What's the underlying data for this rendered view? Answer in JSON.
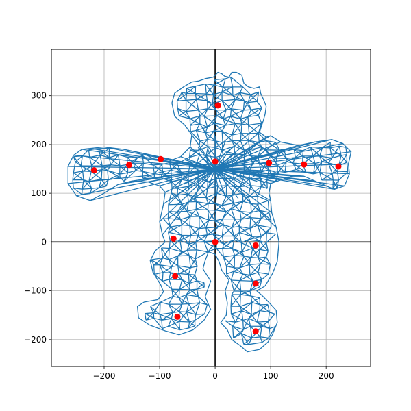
{
  "chart_data": {
    "type": "scatter",
    "title": "",
    "xlabel": "",
    "ylabel": "",
    "xlim": [
      -295,
      280
    ],
    "ylim": [
      -255,
      395
    ],
    "xticks": [
      -200,
      -100,
      0,
      100,
      200
    ],
    "yticks": [
      -200,
      -100,
      0,
      100,
      200,
      300
    ],
    "xtick_labels": [
      "−200",
      "−100",
      "0",
      "100",
      "200"
    ],
    "ytick_labels": [
      "−200",
      "−100",
      "0",
      "100",
      "200",
      "300"
    ],
    "grid": true,
    "axis_lines": {
      "x0": true,
      "y0": true
    },
    "mesh_color": "#1f77b4",
    "point_color": "#ff0000",
    "outline": [
      [
        -17,
        335
      ],
      [
        -3,
        338
      ],
      [
        5,
        348
      ],
      [
        12,
        345
      ],
      [
        17,
        340
      ],
      [
        25,
        338
      ],
      [
        30,
        348
      ],
      [
        38,
        348
      ],
      [
        48,
        342
      ],
      [
        52,
        325
      ],
      [
        60,
        318
      ],
      [
        70,
        315
      ],
      [
        80,
        318
      ],
      [
        82,
        305
      ],
      [
        88,
        290
      ],
      [
        92,
        278
      ],
      [
        90,
        262
      ],
      [
        87,
        250
      ],
      [
        83,
        236
      ],
      [
        80,
        225
      ],
      [
        92,
        215
      ],
      [
        100,
        218
      ],
      [
        118,
        205
      ],
      [
        150,
        198
      ],
      [
        180,
        205
      ],
      [
        210,
        210
      ],
      [
        230,
        202
      ],
      [
        245,
        185
      ],
      [
        240,
        160
      ],
      [
        242,
        140
      ],
      [
        233,
        115
      ],
      [
        215,
        108
      ],
      [
        200,
        115
      ],
      [
        180,
        125
      ],
      [
        160,
        135
      ],
      [
        140,
        135
      ],
      [
        120,
        128
      ],
      [
        100,
        120
      ],
      [
        97,
        100
      ],
      [
        100,
        85
      ],
      [
        102,
        60
      ],
      [
        110,
        30
      ],
      [
        115,
        0
      ],
      [
        112,
        -40
      ],
      [
        103,
        -65
      ],
      [
        90,
        -90
      ],
      [
        75,
        -100
      ],
      [
        85,
        -110
      ],
      [
        98,
        -125
      ],
      [
        110,
        -140
      ],
      [
        112,
        -165
      ],
      [
        103,
        -190
      ],
      [
        95,
        -205
      ],
      [
        80,
        -220
      ],
      [
        58,
        -225
      ],
      [
        45,
        -212
      ],
      [
        30,
        -200
      ],
      [
        22,
        -180
      ],
      [
        10,
        -165
      ],
      [
        20,
        -150
      ],
      [
        22,
        -125
      ],
      [
        18,
        -100
      ],
      [
        25,
        -78
      ],
      [
        12,
        -58
      ],
      [
        7,
        -40
      ],
      [
        0,
        -25
      ],
      [
        -12,
        -20
      ],
      [
        -18,
        -38
      ],
      [
        -22,
        -55
      ],
      [
        -8,
        -80
      ],
      [
        -18,
        -112
      ],
      [
        -8,
        -138
      ],
      [
        -20,
        -160
      ],
      [
        -40,
        -180
      ],
      [
        -65,
        -190
      ],
      [
        -90,
        -182
      ],
      [
        -118,
        -170
      ],
      [
        -138,
        -155
      ],
      [
        -140,
        -132
      ],
      [
        -128,
        -123
      ],
      [
        -103,
        -118
      ],
      [
        -93,
        -102
      ],
      [
        -98,
        -88
      ],
      [
        -112,
        -62
      ],
      [
        -117,
        -38
      ],
      [
        -108,
        -18
      ],
      [
        -90,
        0
      ],
      [
        -95,
        15
      ],
      [
        -100,
        42
      ],
      [
        -93,
        78
      ],
      [
        -90,
        102
      ],
      [
        -100,
        115
      ],
      [
        -120,
        123
      ],
      [
        -150,
        125
      ],
      [
        -175,
        118
      ],
      [
        -200,
        100
      ],
      [
        -225,
        85
      ],
      [
        -250,
        95
      ],
      [
        -265,
        120
      ],
      [
        -265,
        155
      ],
      [
        -255,
        178
      ],
      [
        -240,
        190
      ],
      [
        -225,
        192
      ],
      [
        -200,
        195
      ],
      [
        -165,
        190
      ],
      [
        -130,
        182
      ],
      [
        -110,
        170
      ],
      [
        -85,
        165
      ],
      [
        -62,
        175
      ],
      [
        -45,
        195
      ],
      [
        -42,
        220
      ],
      [
        -55,
        240
      ],
      [
        -73,
        258
      ],
      [
        -78,
        285
      ],
      [
        -73,
        305
      ],
      [
        -57,
        318
      ],
      [
        -42,
        328
      ],
      [
        -30,
        330
      ]
    ],
    "centroids": [
      {
        "x": 5,
        "y": 280
      },
      {
        "x": 0,
        "y": 165
      },
      {
        "x": -98,
        "y": 170
      },
      {
        "x": -155,
        "y": 158
      },
      {
        "x": -218,
        "y": 147
      },
      {
        "x": 97,
        "y": 162
      },
      {
        "x": 160,
        "y": 159
      },
      {
        "x": 222,
        "y": 155
      },
      {
        "x": -75,
        "y": 7
      },
      {
        "x": 0,
        "y": 0
      },
      {
        "x": 73,
        "y": -7
      },
      {
        "x": -72,
        "y": -70
      },
      {
        "x": 73,
        "y": -85
      },
      {
        "x": -68,
        "y": -153
      },
      {
        "x": 73,
        "y": -183
      }
    ]
  }
}
